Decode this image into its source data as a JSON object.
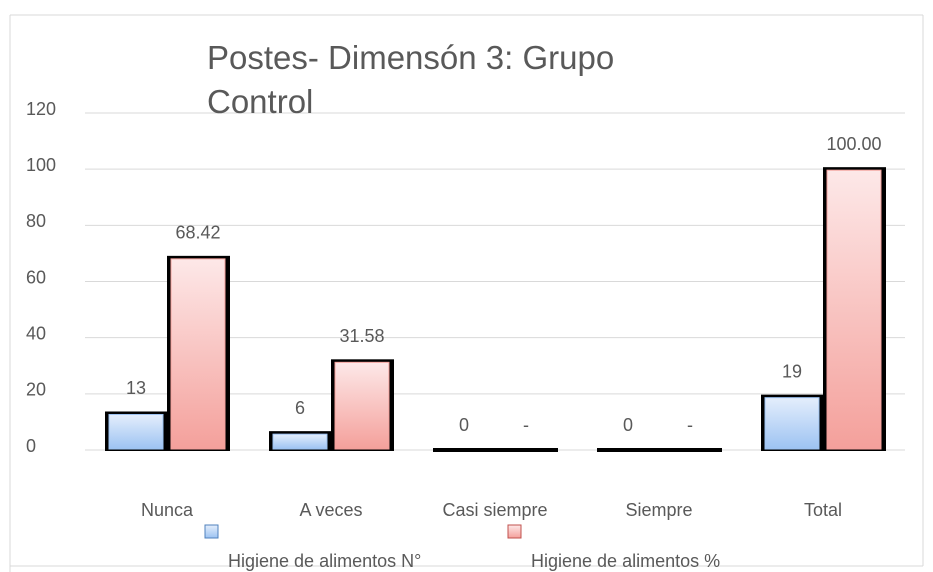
{
  "chart_data": {
    "type": "bar",
    "title": "Postes- Dimensón 3: Grupo Control",
    "categories": [
      "Nunca",
      "A veces",
      "Casi siempre",
      "Siempre",
      "Total"
    ],
    "series": [
      {
        "name": "Higiene de alimentos N°",
        "color": "#9dc3f2",
        "values": [
          13,
          6,
          0,
          0,
          19
        ]
      },
      {
        "name": "Higiene de alimentos %",
        "color": "#f4a09b",
        "values": [
          68.42,
          31.58,
          0,
          0,
          100
        ],
        "value_labels": [
          "68.42",
          "31.58",
          "-",
          "-",
          "100.00"
        ]
      }
    ],
    "ylim": [
      0,
      120
    ],
    "yticks": [
      0,
      20,
      40,
      60,
      80,
      100,
      120
    ],
    "grid": true,
    "legend": "bottom"
  }
}
